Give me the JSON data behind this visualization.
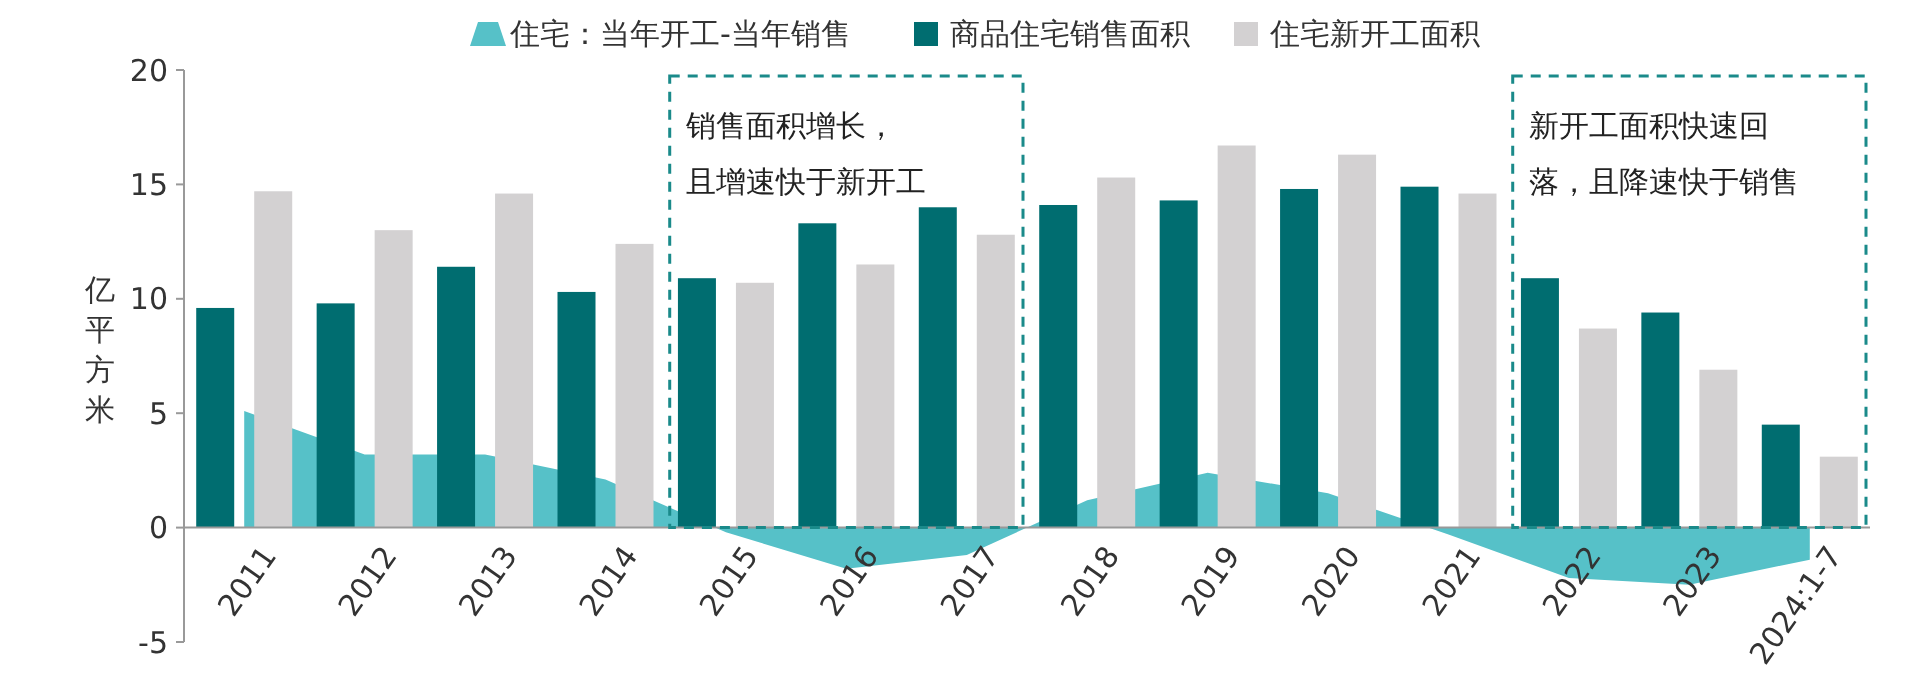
{
  "chart_data": {
    "type": "bar",
    "ylabel": "亿平方米",
    "categories": [
      "2011",
      "2012",
      "2013",
      "2014",
      "2015",
      "2016",
      "2017",
      "2018",
      "2019",
      "2020",
      "2021",
      "2022",
      "2023",
      "2024:1-7"
    ],
    "series": [
      {
        "name": "住宅：当年开工-当年销售",
        "type": "area",
        "color": "#56c1c8",
        "values": [
          5.1,
          3.2,
          3.2,
          2.1,
          -0.2,
          -1.8,
          -1.2,
          1.2,
          2.4,
          1.5,
          -0.3,
          -2.2,
          -2.5,
          -1.4
        ]
      },
      {
        "name": "商品住宅销售面积",
        "color": "#006d70",
        "values": [
          9.6,
          9.8,
          11.4,
          10.3,
          10.9,
          13.3,
          14.0,
          14.1,
          14.3,
          14.8,
          14.9,
          10.9,
          9.4,
          4.5
        ]
      },
      {
        "name": "住宅新开工面积",
        "color": "#d3d1d2",
        "values": [
          14.7,
          13.0,
          14.6,
          12.4,
          10.7,
          11.5,
          12.8,
          15.3,
          16.7,
          16.3,
          14.6,
          8.7,
          6.9,
          3.1
        ]
      }
    ],
    "ylim": [
      -5,
      20
    ],
    "yticks": [
      -5,
      0,
      5,
      10,
      15,
      20
    ],
    "grid": false,
    "legend": "top",
    "annotations": [
      "销售面积增长，且增速快于新开工",
      "新开工面积快速回落，且降速快于销售"
    ]
  }
}
